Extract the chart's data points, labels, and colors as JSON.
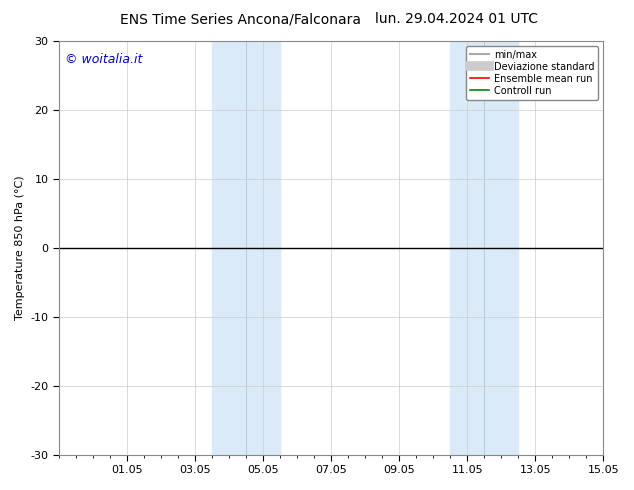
{
  "title": "ENS Time Series Ancona/Falconara",
  "title_right": "lun. 29.04.2024 01 UTC",
  "ylabel": "Temperature 850 hPa (°C)",
  "watermark": "© woitalia.it",
  "watermark_color": "#0000cc",
  "ylim": [
    -30,
    30
  ],
  "yticks": [
    -30,
    -20,
    -10,
    0,
    10,
    20,
    30
  ],
  "xtick_labels": [
    "01.05",
    "03.05",
    "05.05",
    "07.05",
    "09.05",
    "11.05",
    "13.05",
    "15.05"
  ],
  "xtick_positions": [
    2,
    4,
    6,
    8,
    10,
    12,
    14,
    16
  ],
  "x_min": 0,
  "x_max": 16,
  "shaded_bands": [
    {
      "x_start": 4.5,
      "x_end": 6.5,
      "color": "#daeaf8"
    },
    {
      "x_start": 11.5,
      "x_end": 13.5,
      "color": "#daeaf8"
    }
  ],
  "inner_vlines": [
    5.5,
    12.5
  ],
  "hline_y": 0,
  "hline_color": "#000000",
  "legend_items": [
    {
      "label": "min/max",
      "color": "#aaaaaa",
      "lw": 1.5,
      "linestyle": "-"
    },
    {
      "label": "Deviazione standard",
      "color": "#cccccc",
      "lw": 7,
      "linestyle": "-"
    },
    {
      "label": "Ensemble mean run",
      "color": "#ff0000",
      "lw": 1.2,
      "linestyle": "-"
    },
    {
      "label": "Controll run",
      "color": "#008800",
      "lw": 1.2,
      "linestyle": "-"
    }
  ],
  "bg_color": "#ffffff",
  "plot_bg_color": "#ffffff",
  "grid_color": "#cccccc",
  "title_fontsize": 10,
  "label_fontsize": 8,
  "tick_fontsize": 8,
  "watermark_fontsize": 9
}
